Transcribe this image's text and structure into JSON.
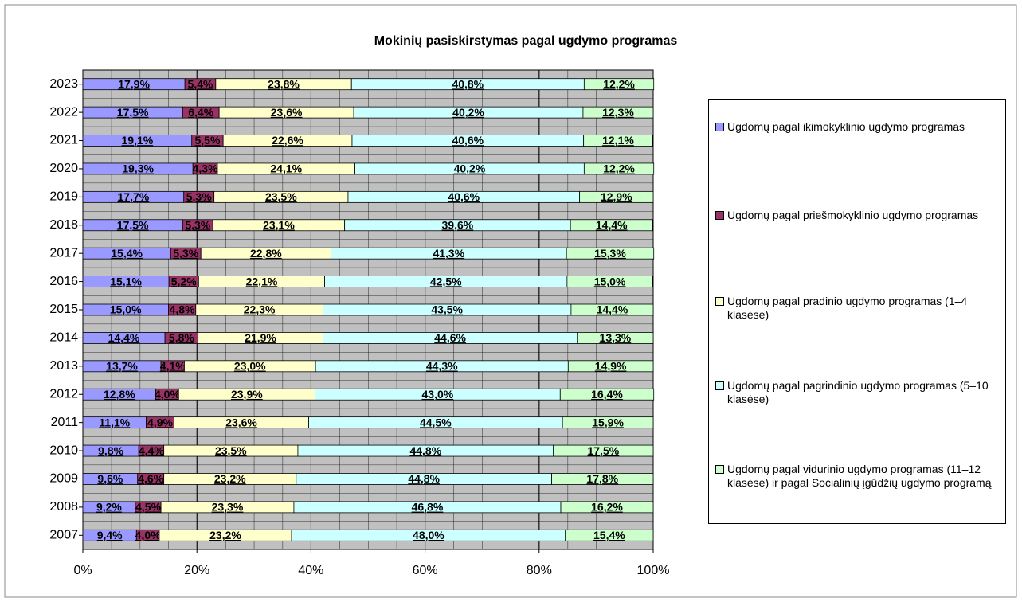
{
  "chart_data": {
    "type": "stacked-barh",
    "title": "Mokinių pasiskirstymas pagal ugdymo programas",
    "categories": [
      "2023",
      "2022",
      "2021",
      "2020",
      "2019",
      "2018",
      "2017",
      "2016",
      "2015",
      "2014",
      "2013",
      "2012",
      "2011",
      "2010",
      "2009",
      "2008",
      "2007"
    ],
    "series": [
      {
        "name": "Ugdomų pagal ikimokyklinio ugdymo programas",
        "color": "#9999ff",
        "values": [
          17.9,
          17.5,
          19.1,
          19.3,
          17.7,
          17.5,
          15.4,
          15.1,
          15.0,
          14.4,
          13.7,
          12.8,
          11.1,
          9.8,
          9.6,
          9.2,
          9.4
        ],
        "value_labels": [
          "17,9%",
          "17,5%",
          "19,1%",
          "19,3%",
          "17,7%",
          "17,5%",
          "15,4%",
          "15,1%",
          "15,0%",
          "14,4%",
          "13,7%",
          "12,8%",
          "11,1%",
          "9,8%",
          "9,6%",
          "9,2%",
          "9,4%"
        ]
      },
      {
        "name": "Ugdomų pagal priešmokyklinio ugdymo programas",
        "color": "#993366",
        "values": [
          5.4,
          6.4,
          5.5,
          4.3,
          5.3,
          5.3,
          5.3,
          5.2,
          4.8,
          5.8,
          4.1,
          4.0,
          4.9,
          4.4,
          4.6,
          4.5,
          4.0
        ],
        "value_labels": [
          "5,4%",
          "6,4%",
          "5,5%",
          "4,3%",
          "5,3%",
          "5,3%",
          "5,3%",
          "5,2%",
          "4,8%",
          "5,8%",
          "4,1%",
          "4,0%",
          "4,9%",
          "4,4%",
          "4,6%",
          "4,5%",
          "4,0%"
        ]
      },
      {
        "name": "Ugdomų pagal pradinio ugdymo programas (1–4 klasėse)",
        "color": "#ffffcc",
        "values": [
          23.8,
          23.6,
          22.6,
          24.1,
          23.5,
          23.1,
          22.8,
          22.1,
          22.3,
          21.9,
          23.0,
          23.9,
          23.6,
          23.5,
          23.2,
          23.3,
          23.2
        ],
        "value_labels": [
          "23,8%",
          "23,6%",
          "22,6%",
          "24,1%",
          "23,5%",
          "23,1%",
          "22,8%",
          "22,1%",
          "22,3%",
          "21,9%",
          "23,0%",
          "23,9%",
          "23,6%",
          "23,5%",
          "23,2%",
          "23,3%",
          "23,2%"
        ]
      },
      {
        "name": "Ugdomų pagal pagrindinio ugdymo programas (5–10 klasėse)",
        "color": "#ccffff",
        "values": [
          40.8,
          40.2,
          40.6,
          40.2,
          40.6,
          39.6,
          41.3,
          42.5,
          43.5,
          44.6,
          44.3,
          43.0,
          44.5,
          44.8,
          44.8,
          46.8,
          48.0
        ],
        "value_labels": [
          "40,8%",
          "40,2%",
          "40,6%",
          "40,2%",
          "40,6%",
          "39,6%",
          "41,3%",
          "42,5%",
          "43,5%",
          "44,6%",
          "44,3%",
          "43,0%",
          "44,5%",
          "44,8%",
          "44,8%",
          "46,8%",
          "48,0%"
        ]
      },
      {
        "name": "Ugdomų pagal vidurinio ugdymo programas (11–12 klasėse) ir pagal Socialinių įgūdžių ugdymo programą",
        "color": "#ccffcc",
        "values": [
          12.2,
          12.3,
          12.1,
          12.2,
          12.9,
          14.4,
          15.3,
          15.0,
          14.4,
          13.3,
          14.9,
          16.4,
          15.9,
          17.5,
          17.8,
          16.2,
          15.4
        ],
        "value_labels": [
          "12,2%",
          "12,3%",
          "12,1%",
          "12,2%",
          "12,9%",
          "14,4%",
          "15,3%",
          "15,0%",
          "14,4%",
          "13,3%",
          "14,9%",
          "16,4%",
          "15,9%",
          "17,5%",
          "17,8%",
          "16,2%",
          "15,4%"
        ]
      }
    ],
    "xlim": [
      0,
      100
    ],
    "xticks": [
      {
        "value": 0,
        "label": "0%"
      },
      {
        "value": 20,
        "label": "20%"
      },
      {
        "value": 40,
        "label": "40%"
      },
      {
        "value": 60,
        "label": "60%"
      },
      {
        "value": 80,
        "label": "80%"
      },
      {
        "value": 100,
        "label": "100%"
      }
    ],
    "grid": true
  }
}
